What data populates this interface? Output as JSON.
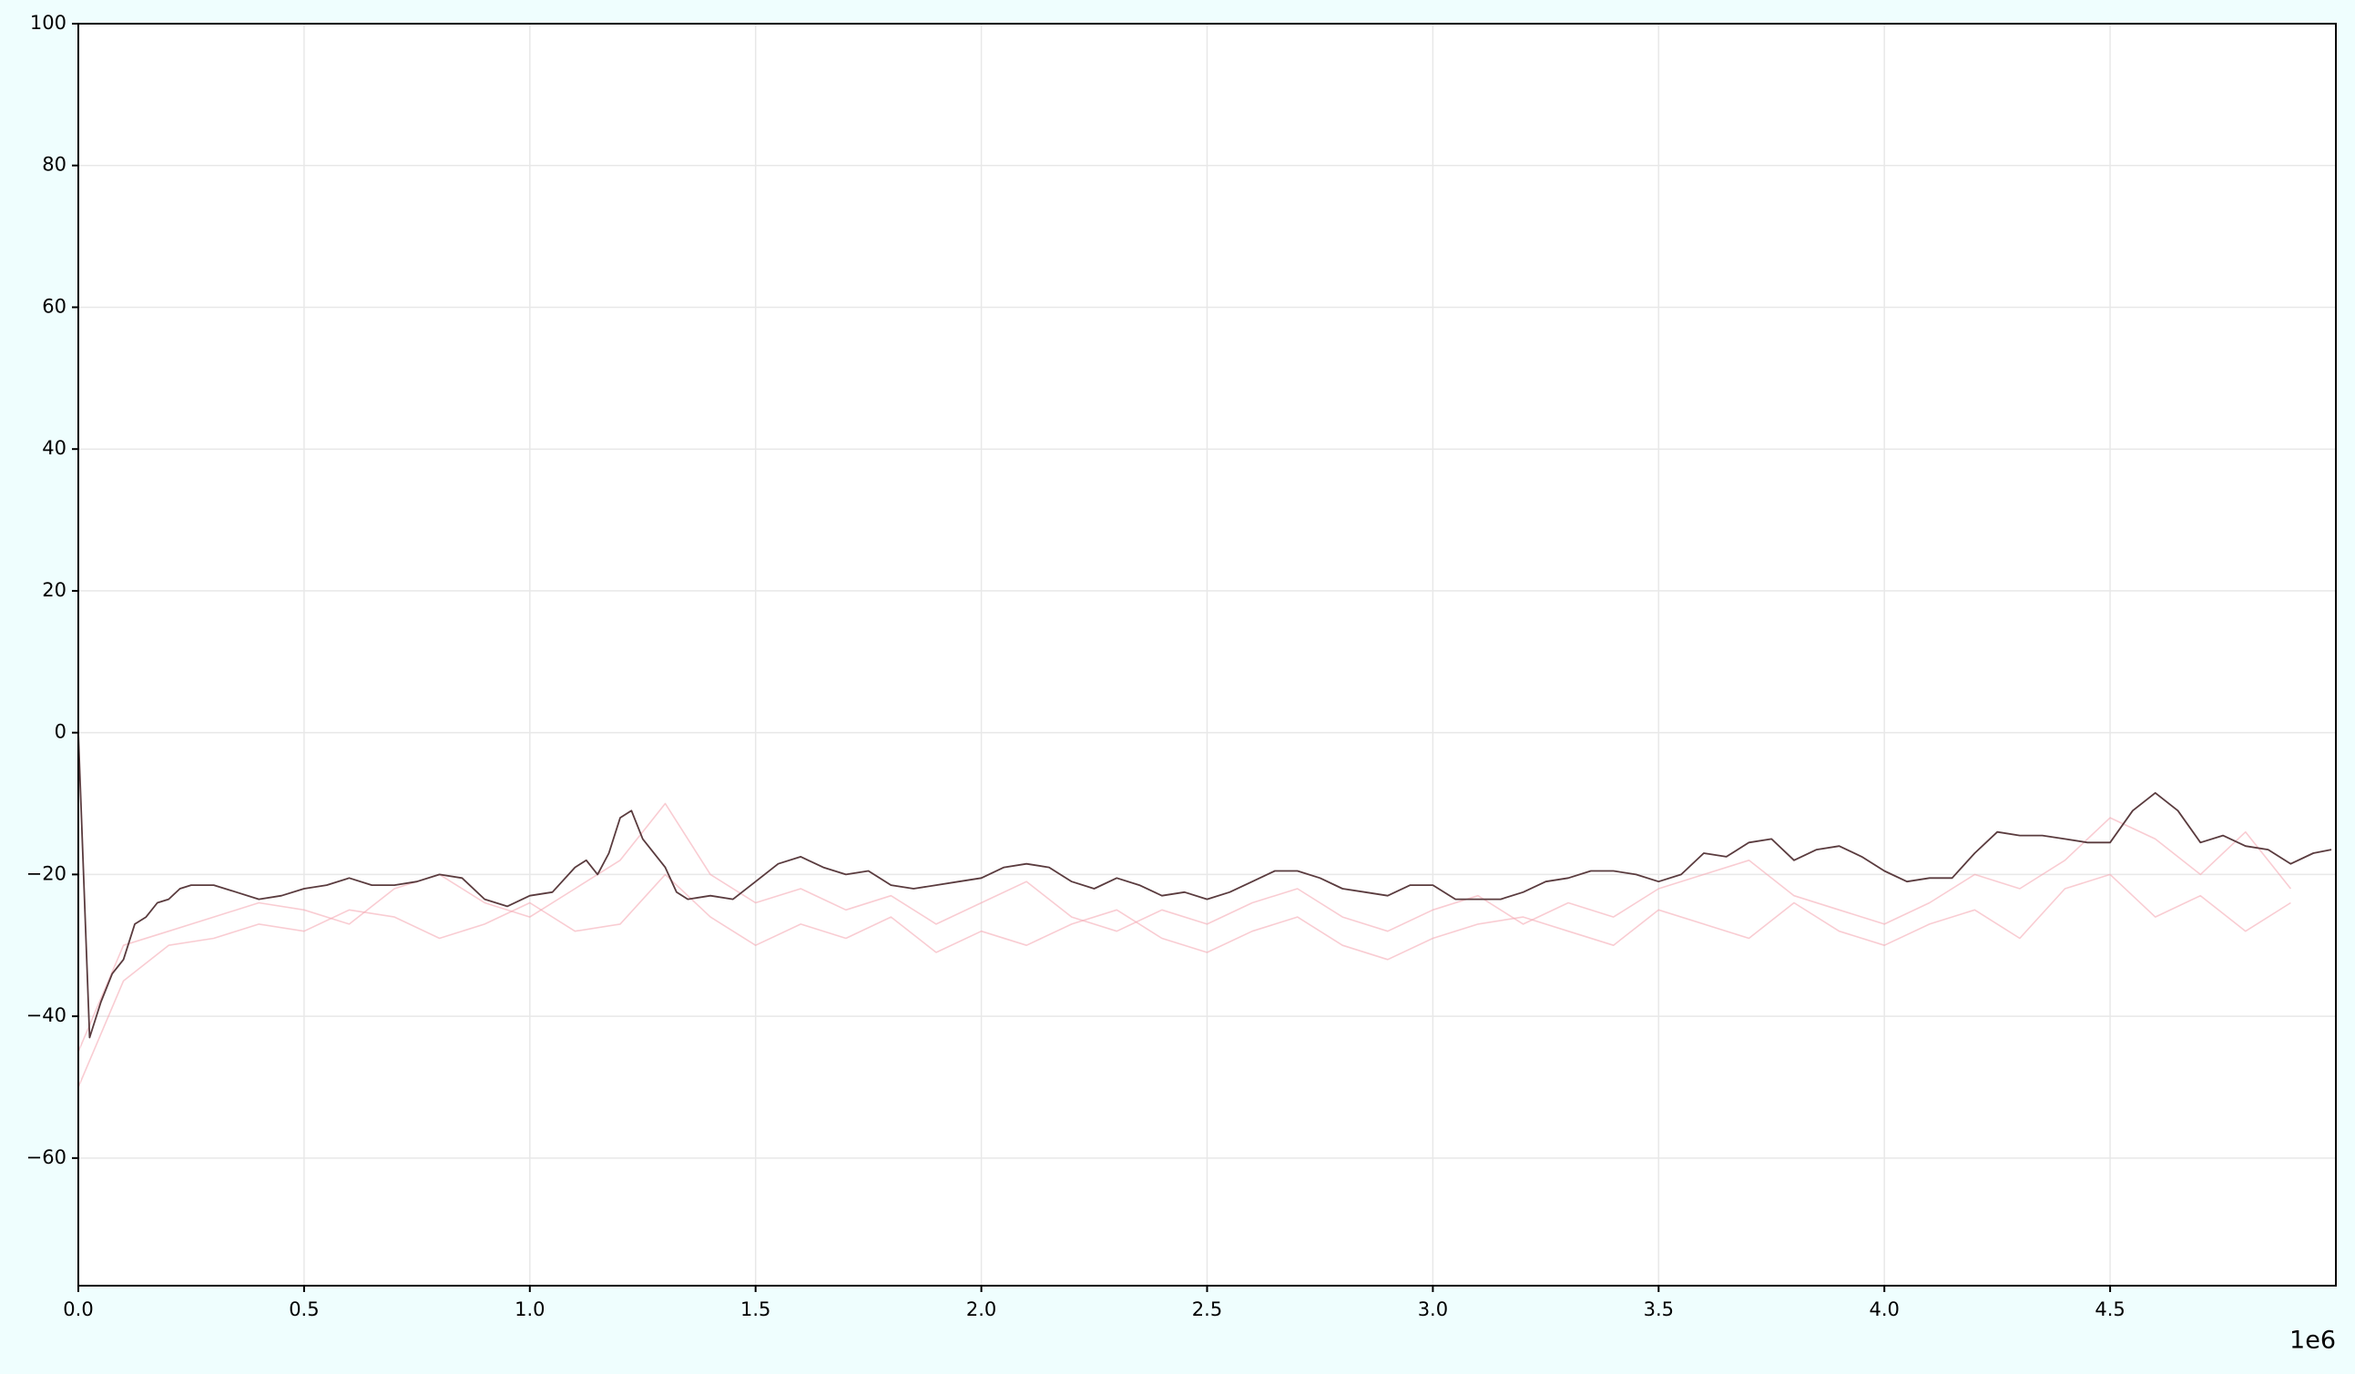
{
  "chart_data": {
    "type": "line",
    "x_offset_label": "1e6",
    "xlim": [
      0,
      5.0
    ],
    "ylim": [
      -78,
      100
    ],
    "grid": true,
    "xticks": [
      {
        "value": 0,
        "label": "0.0"
      },
      0.5,
      {
        "value": 1,
        "label": "1.0"
      },
      1.5,
      {
        "value": 2,
        "label": "2.0"
      },
      2.5,
      {
        "value": 3,
        "label": "3.0"
      },
      3.5,
      {
        "value": 4,
        "label": "4.0"
      },
      4.5
    ],
    "yticks": [
      {
        "value": -60,
        "label": "−60"
      },
      {
        "value": -40,
        "label": "−40"
      },
      {
        "value": -20,
        "label": "−20"
      },
      0,
      20,
      40,
      60,
      80,
      100
    ],
    "series": [
      {
        "color": "#f4a3ad",
        "x": [
          0,
          0.1,
          0.2,
          0.3,
          0.4,
          0.5,
          0.6,
          0.7,
          0.8,
          0.9,
          1.0,
          1.1,
          1.2,
          1.3,
          1.4,
          1.5,
          1.6,
          1.7,
          1.8,
          1.9,
          2.0,
          2.1,
          2.2,
          2.3,
          2.4,
          2.5,
          2.6,
          2.7,
          2.8,
          2.9,
          3.0,
          3.1,
          3.2,
          3.3,
          3.4,
          3.5,
          3.6,
          3.7,
          3.8,
          3.9,
          4.0,
          4.1,
          4.2,
          4.3,
          4.4,
          4.5,
          4.6,
          4.7,
          4.8,
          4.9
        ],
        "values": [
          -45,
          -30,
          -28,
          -26,
          -24,
          -25,
          -27,
          -22,
          -20,
          -24,
          -26,
          -22,
          -18,
          -10,
          -20,
          -24,
          -22,
          -25,
          -23,
          -27,
          -24,
          -21,
          -26,
          -28,
          -25,
          -27,
          -24,
          -22,
          -26,
          -28,
          -25,
          -23,
          -27,
          -24,
          -26,
          -22,
          -20,
          -18,
          -23,
          -25,
          -27,
          -24,
          -20,
          -22,
          -18,
          -12,
          -15,
          -20,
          -14,
          -22
        ]
      },
      {
        "color": "#f4a3ad",
        "x": [
          0,
          0.1,
          0.2,
          0.3,
          0.4,
          0.5,
          0.6,
          0.7,
          0.8,
          0.9,
          1.0,
          1.1,
          1.2,
          1.3,
          1.4,
          1.5,
          1.6,
          1.7,
          1.8,
          1.9,
          2.0,
          2.1,
          2.2,
          2.3,
          2.4,
          2.5,
          2.6,
          2.7,
          2.8,
          2.9,
          3.0,
          3.1,
          3.2,
          3.3,
          3.4,
          3.5,
          3.6,
          3.7,
          3.8,
          3.9,
          4.0,
          4.1,
          4.2,
          4.3,
          4.4,
          4.5,
          4.6,
          4.7,
          4.8,
          4.9
        ],
        "values": [
          -50,
          -35,
          -30,
          -29,
          -27,
          -28,
          -25,
          -26,
          -29,
          -27,
          -24,
          -28,
          -27,
          -20,
          -26,
          -30,
          -27,
          -29,
          -26,
          -31,
          -28,
          -30,
          -27,
          -25,
          -29,
          -31,
          -28,
          -26,
          -30,
          -32,
          -29,
          -27,
          -26,
          -28,
          -30,
          -25,
          -27,
          -29,
          -24,
          -28,
          -30,
          -27,
          -25,
          -29,
          -22,
          -20,
          -26,
          -23,
          -28,
          -24
        ]
      },
      {
        "color": "#5a3b3e",
        "x": [
          0,
          0.025,
          0.05,
          0.075,
          0.1,
          0.125,
          0.15,
          0.175,
          0.2,
          0.225,
          0.25,
          0.3,
          0.35,
          0.4,
          0.45,
          0.5,
          0.55,
          0.6,
          0.65,
          0.7,
          0.75,
          0.8,
          0.85,
          0.9,
          0.95,
          1.0,
          1.05,
          1.1,
          1.125,
          1.15,
          1.175,
          1.2,
          1.225,
          1.25,
          1.3,
          1.325,
          1.35,
          1.4,
          1.45,
          1.5,
          1.55,
          1.6,
          1.65,
          1.7,
          1.75,
          1.8,
          1.85,
          1.9,
          1.95,
          2.0,
          2.05,
          2.1,
          2.15,
          2.2,
          2.25,
          2.3,
          2.35,
          2.4,
          2.45,
          2.5,
          2.55,
          2.6,
          2.65,
          2.7,
          2.75,
          2.8,
          2.85,
          2.9,
          2.95,
          3.0,
          3.05,
          3.1,
          3.15,
          3.2,
          3.25,
          3.3,
          3.35,
          3.4,
          3.45,
          3.5,
          3.55,
          3.6,
          3.65,
          3.7,
          3.75,
          3.8,
          3.85,
          3.9,
          3.95,
          4.0,
          4.05,
          4.1,
          4.15,
          4.2,
          4.25,
          4.3,
          4.35,
          4.4,
          4.45,
          4.5,
          4.55,
          4.6,
          4.65,
          4.7,
          4.75,
          4.8,
          4.85,
          4.9,
          4.95,
          4.99
        ],
        "values": [
          0,
          -43,
          -38,
          -34,
          -32,
          -27,
          -26,
          -24,
          -23.5,
          -22,
          -21.5,
          -21.5,
          -22.5,
          -23.5,
          -23,
          -22,
          -21.5,
          -20.5,
          -21.5,
          -21.5,
          -21,
          -20,
          -20.5,
          -23.5,
          -24.5,
          -23,
          -22.5,
          -19,
          -18,
          -20,
          -17,
          -12,
          -11,
          -15,
          -19,
          -22.5,
          -23.5,
          -23,
          -23.5,
          -21,
          -18.5,
          -17.5,
          -19,
          -20,
          -19.5,
          -21.5,
          -22,
          -21.5,
          -21,
          -20.5,
          -19,
          -18.5,
          -19,
          -21,
          -22,
          -20.5,
          -21.5,
          -23,
          -22.5,
          -23.5,
          -22.5,
          -21,
          -19.5,
          -19.5,
          -20.5,
          -22,
          -22.5,
          -23,
          -21.5,
          -21.5,
          -23.5,
          -23.5,
          -23.5,
          -22.5,
          -21,
          -20.5,
          -19.5,
          -19.5,
          -20,
          -21,
          -20,
          -17,
          -17.5,
          -15.5,
          -15,
          -18,
          -16.5,
          -16,
          -17.5,
          -19.5,
          -21,
          -20.5,
          -20.5,
          -17,
          -14,
          -14.5,
          -14.5,
          -15,
          -15.5,
          -15.5,
          -11,
          -8.5,
          -11,
          -15.5,
          -14.5,
          -16,
          -16.5,
          -18.5,
          -17,
          -16.5
        ]
      }
    ]
  }
}
